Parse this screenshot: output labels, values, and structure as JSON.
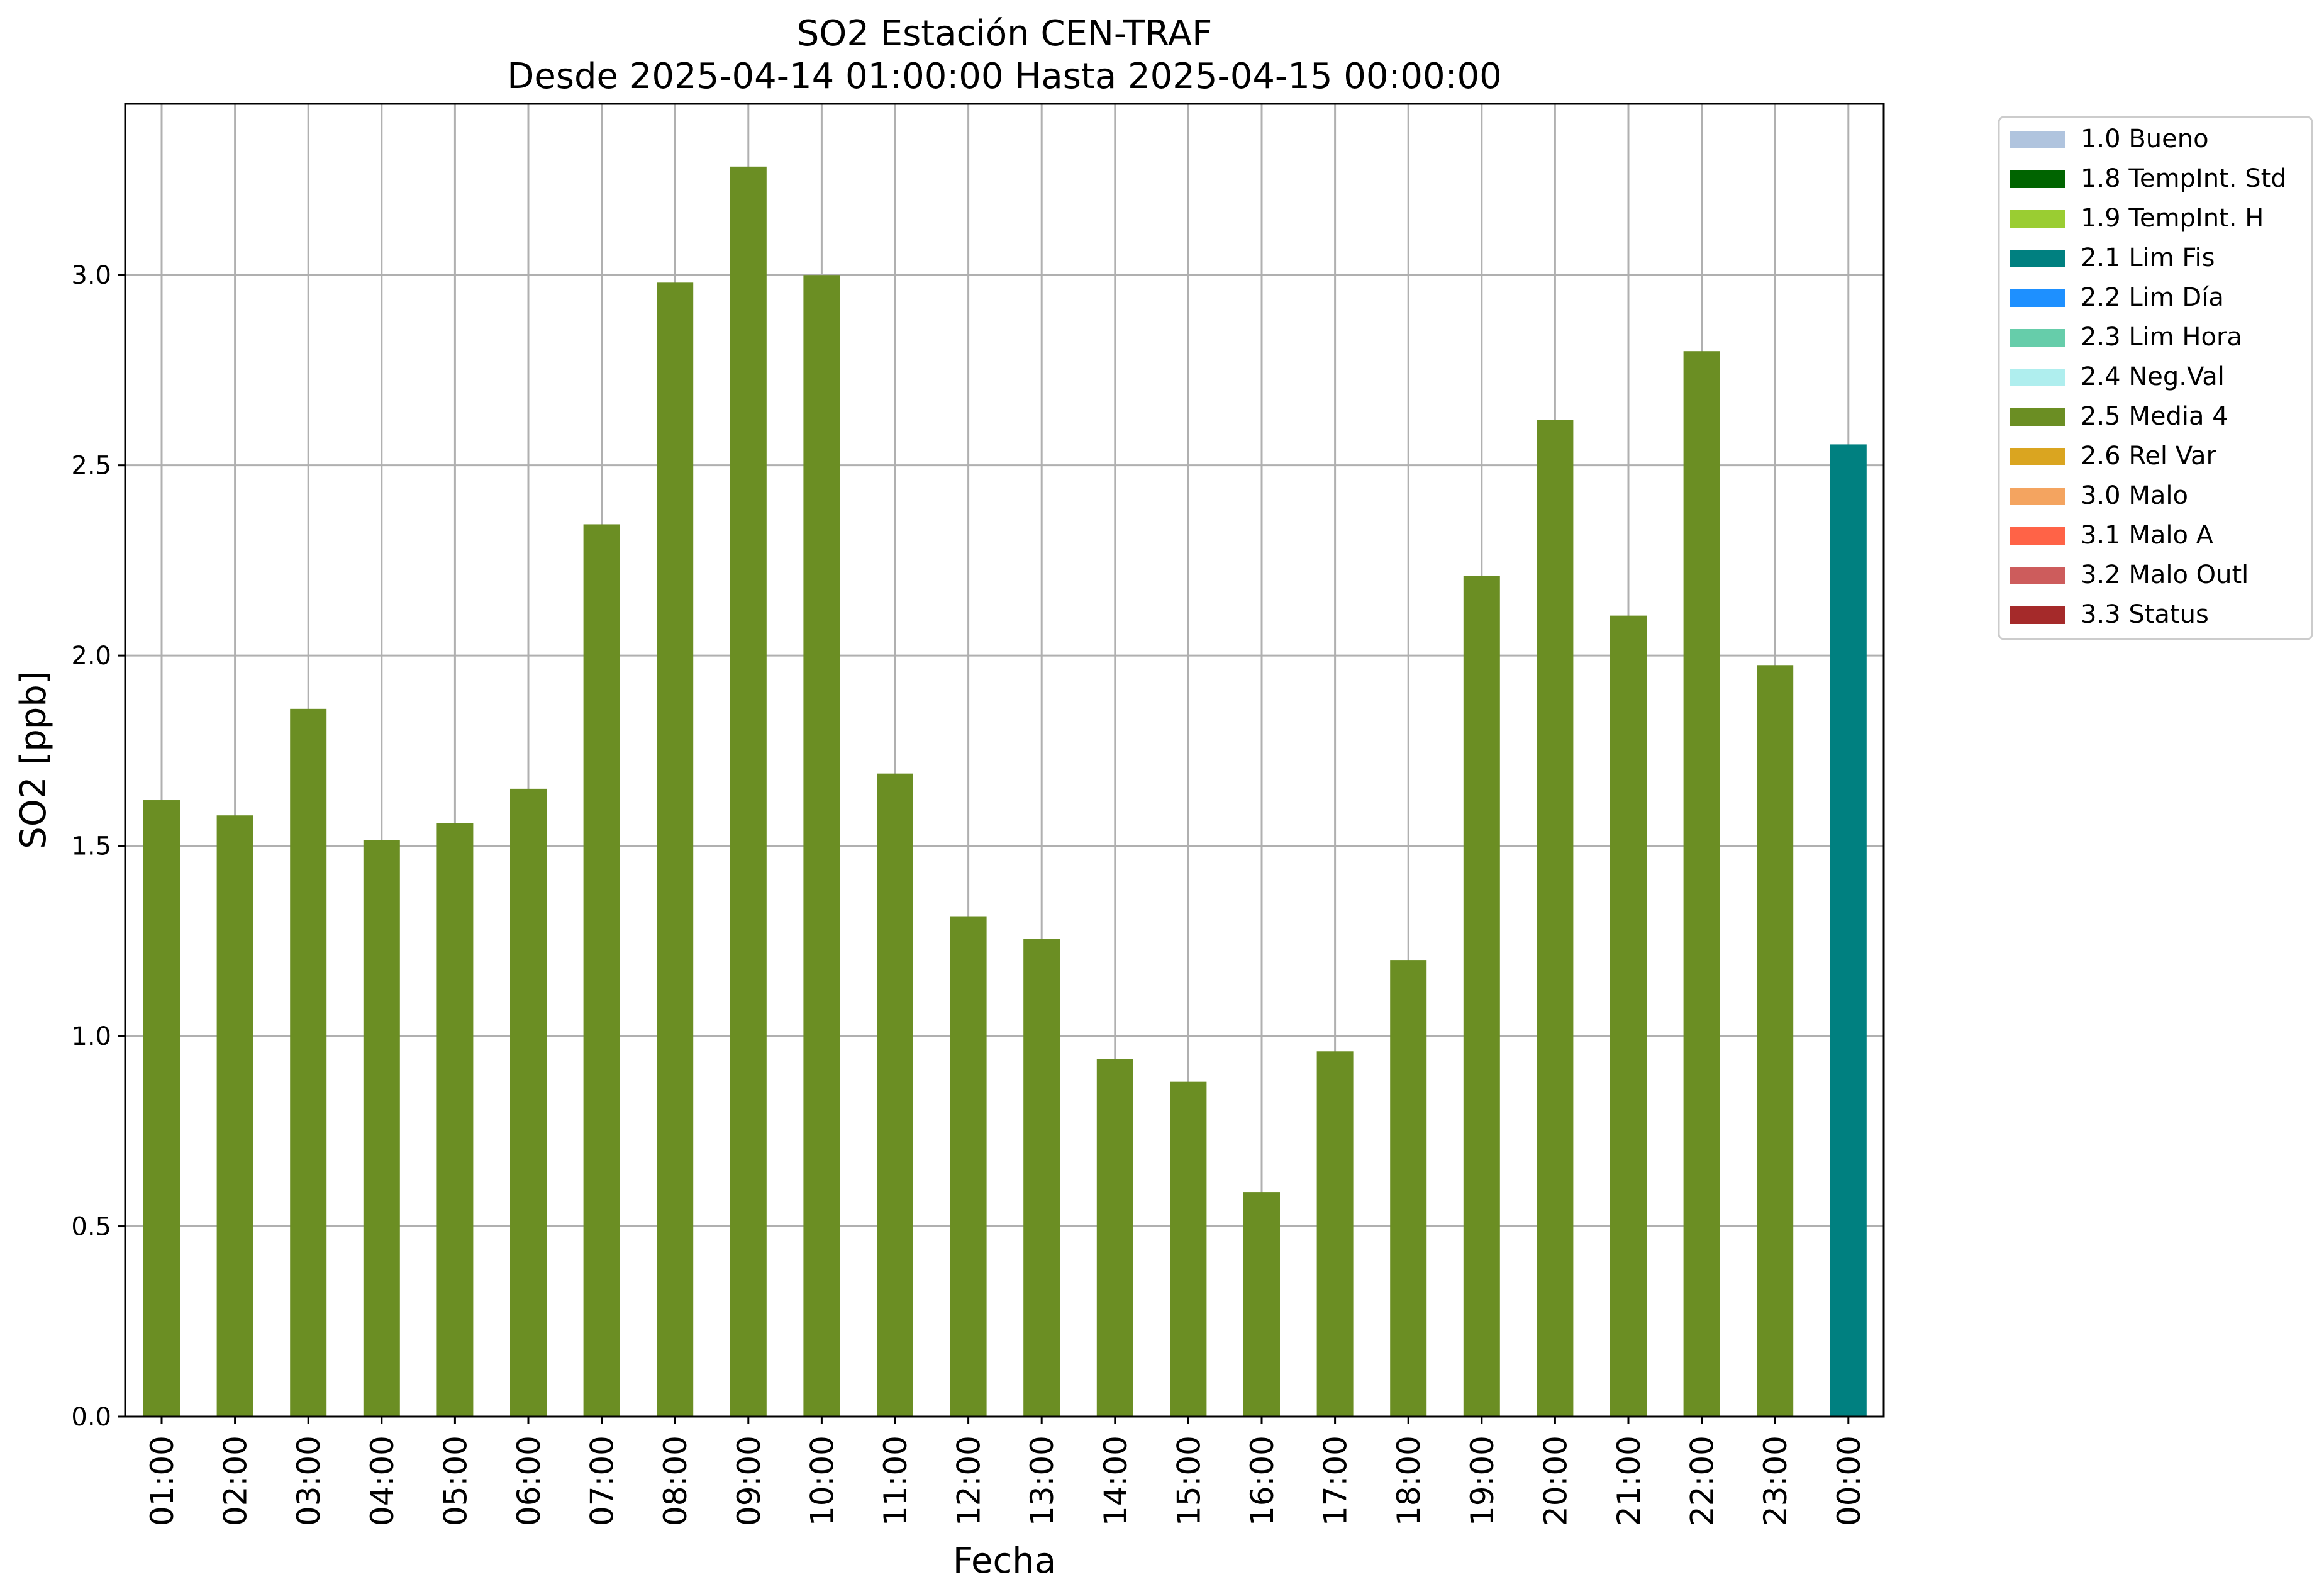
{
  "chart_data": {
    "type": "bar",
    "title": "SO2 Estación CEN-TRAF",
    "subtitle": "Desde 2025-04-14 01:00:00 Hasta 2025-04-15 00:00:00",
    "xlabel": "Fecha",
    "ylabel": "SO2 [ppb]",
    "ylim": [
      0,
      3.45
    ],
    "yticks": [
      "0.0",
      "0.5",
      "1.0",
      "1.5",
      "2.0",
      "2.5",
      "3.0"
    ],
    "grid": true,
    "legend_position": "outside-top-right",
    "categories": [
      "01:00",
      "02:00",
      "03:00",
      "04:00",
      "05:00",
      "06:00",
      "07:00",
      "08:00",
      "09:00",
      "10:00",
      "11:00",
      "12:00",
      "13:00",
      "14:00",
      "15:00",
      "16:00",
      "17:00",
      "18:00",
      "19:00",
      "20:00",
      "21:00",
      "22:00",
      "23:00",
      "00:00"
    ],
    "values": [
      1.62,
      1.58,
      1.86,
      1.515,
      1.56,
      1.65,
      2.345,
      2.98,
      3.285,
      3.0,
      1.69,
      1.315,
      1.255,
      0.94,
      0.88,
      0.59,
      0.96,
      1.2,
      2.21,
      2.62,
      2.105,
      2.8,
      1.975,
      2.555
    ],
    "bar_flags": [
      "2.5 Media 4",
      "2.5 Media 4",
      "2.5 Media 4",
      "2.5 Media 4",
      "2.5 Media 4",
      "2.5 Media 4",
      "2.5 Media 4",
      "2.5 Media 4",
      "2.5 Media 4",
      "2.5 Media 4",
      "2.5 Media 4",
      "2.5 Media 4",
      "2.5 Media 4",
      "2.5 Media 4",
      "2.5 Media 4",
      "2.5 Media 4",
      "2.5 Media 4",
      "2.5 Media 4",
      "2.5 Media 4",
      "2.5 Media 4",
      "2.5 Media 4",
      "2.5 Media 4",
      "2.5 Media 4",
      "2.1 Lim Fis"
    ],
    "legend": [
      {
        "label": "1.0 Bueno",
        "color": "#b0c4de"
      },
      {
        "label": "1.8 TempInt. Std",
        "color": "#006400"
      },
      {
        "label": "1.9 TempInt. H",
        "color": "#9acd32"
      },
      {
        "label": "2.1 Lim Fis",
        "color": "#008080"
      },
      {
        "label": "2.2 Lim Día",
        "color": "#1e90ff"
      },
      {
        "label": "2.3 Lim Hora",
        "color": "#66cdaa"
      },
      {
        "label": "2.4 Neg.Val",
        "color": "#afeeee"
      },
      {
        "label": "2.5 Media 4",
        "color": "#6b8e23"
      },
      {
        "label": "2.6 Rel Var",
        "color": "#daa520"
      },
      {
        "label": "3.0 Malo",
        "color": "#f4a460"
      },
      {
        "label": "3.1 Malo A",
        "color": "#ff6347"
      },
      {
        "label": "3.2 Malo Outl",
        "color": "#cd5c5c"
      },
      {
        "label": "3.3 Status",
        "color": "#a52a2a"
      }
    ]
  }
}
